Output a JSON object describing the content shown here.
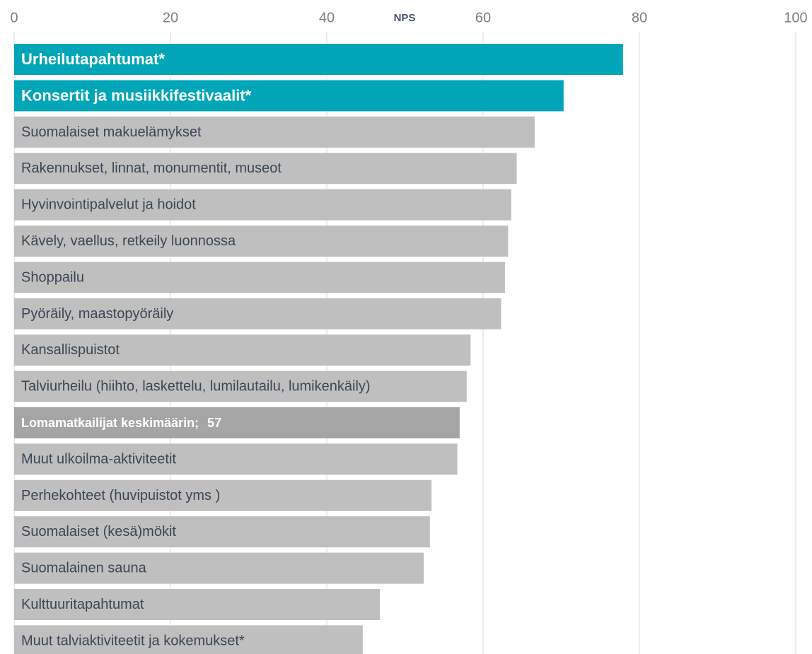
{
  "chart_data": {
    "type": "bar",
    "orientation": "horizontal",
    "x_label": "NPS",
    "categories": [
      "Urheilutapahtumat*",
      "Konsertit ja musiikkifestivaalit*",
      "Suomalaiset makuelämykset",
      "Rakennukset, linnat, monumentit, museot",
      "Hyvinvointipalvelut ja hoidot",
      "Kävely, vaellus, retkeily luonnossa",
      "Shoppailu",
      "Pyöräily, maastopyöräily",
      "Kansallispuistot",
      "Talviurheilu (hiihto, laskettelu, lumilautailu, lumikenkäily)",
      "Lomamatkailijat keskimäärin;",
      "Muut ulkoilma-aktiviteetit",
      "Perhekohteet (huvipuistot yms )",
      "Suomalaiset (kesä)mökit",
      "Suomalainen sauna",
      "Kulttuuritapahtumat",
      "Muut talviaktiviteetit ja kokemukset*"
    ],
    "values": [
      77.9,
      70.3,
      66.6,
      64.3,
      63.6,
      63.2,
      62.8,
      62.3,
      58.4,
      57.9,
      57,
      56.7,
      53.4,
      53.2,
      52.4,
      46.8,
      44.6
    ],
    "value_labels": [
      null,
      null,
      null,
      null,
      null,
      null,
      null,
      null,
      null,
      null,
      "57",
      null,
      null,
      null,
      null,
      null,
      null
    ],
    "colors": [
      "#00a5b8",
      "#00a5b8",
      "#bfbfbf",
      "#bfbfbf",
      "#bfbfbf",
      "#bfbfbf",
      "#bfbfbf",
      "#bfbfbf",
      "#bfbfbf",
      "#bfbfbf",
      "#a5a5a5",
      "#bfbfbf",
      "#bfbfbf",
      "#bfbfbf",
      "#bfbfbf",
      "#bfbfbf",
      "#bfbfbf"
    ],
    "xlim": [
      0,
      100
    ],
    "xticks": [
      0,
      20,
      40,
      60,
      80,
      100
    ],
    "grid": true
  }
}
